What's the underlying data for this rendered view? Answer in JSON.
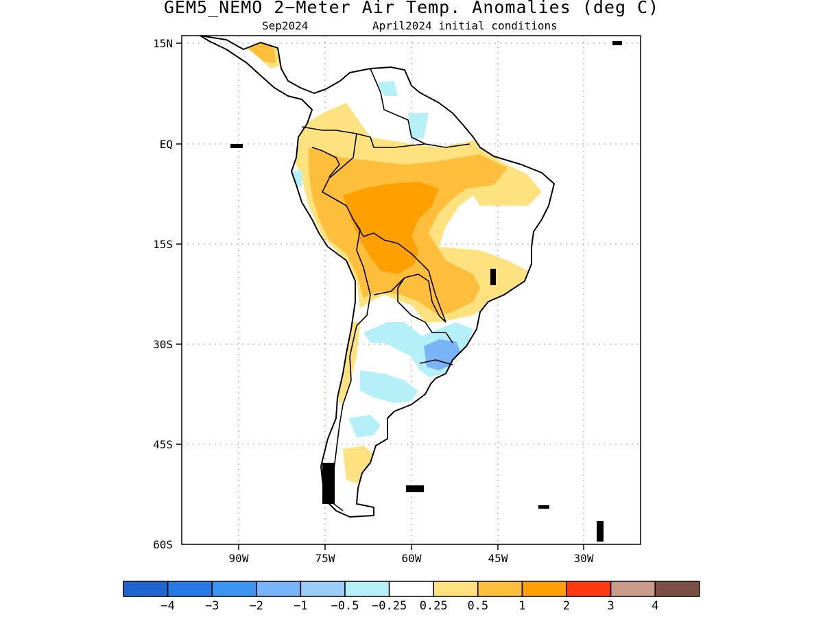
{
  "title": "GEM5_NEMO 2−Meter Air Temp. Anomalies (deg C)",
  "subtitle_left": "Sep2024",
  "subtitle_right": "April2024 initial conditions",
  "map": {
    "lat_ticks": [
      "15N",
      "EQ",
      "15S",
      "30S",
      "45S",
      "60S"
    ],
    "lon_ticks": [
      "90W",
      "75W",
      "60W",
      "45W",
      "30W"
    ],
    "lat_range": [
      15,
      -60
    ],
    "lon_range": [
      -100,
      -20
    ],
    "grid": true,
    "region": "South America",
    "field": "2-meter air temperature anomaly"
  },
  "colorbar": {
    "labels": [
      "−4",
      "−3",
      "−2",
      "−1",
      "−0.5",
      "−0.25",
      "0.25",
      "0.5",
      "1",
      "2",
      "3",
      "4"
    ],
    "colors": [
      "#1f66d1",
      "#2878e6",
      "#3d95f2",
      "#78b4f7",
      "#9acef9",
      "#b5f0f8",
      "#ffffff",
      "#ffe280",
      "#ffbe3c",
      "#ffa000",
      "#ff3a10",
      "#c89b8a",
      "#7a4e42"
    ]
  }
}
